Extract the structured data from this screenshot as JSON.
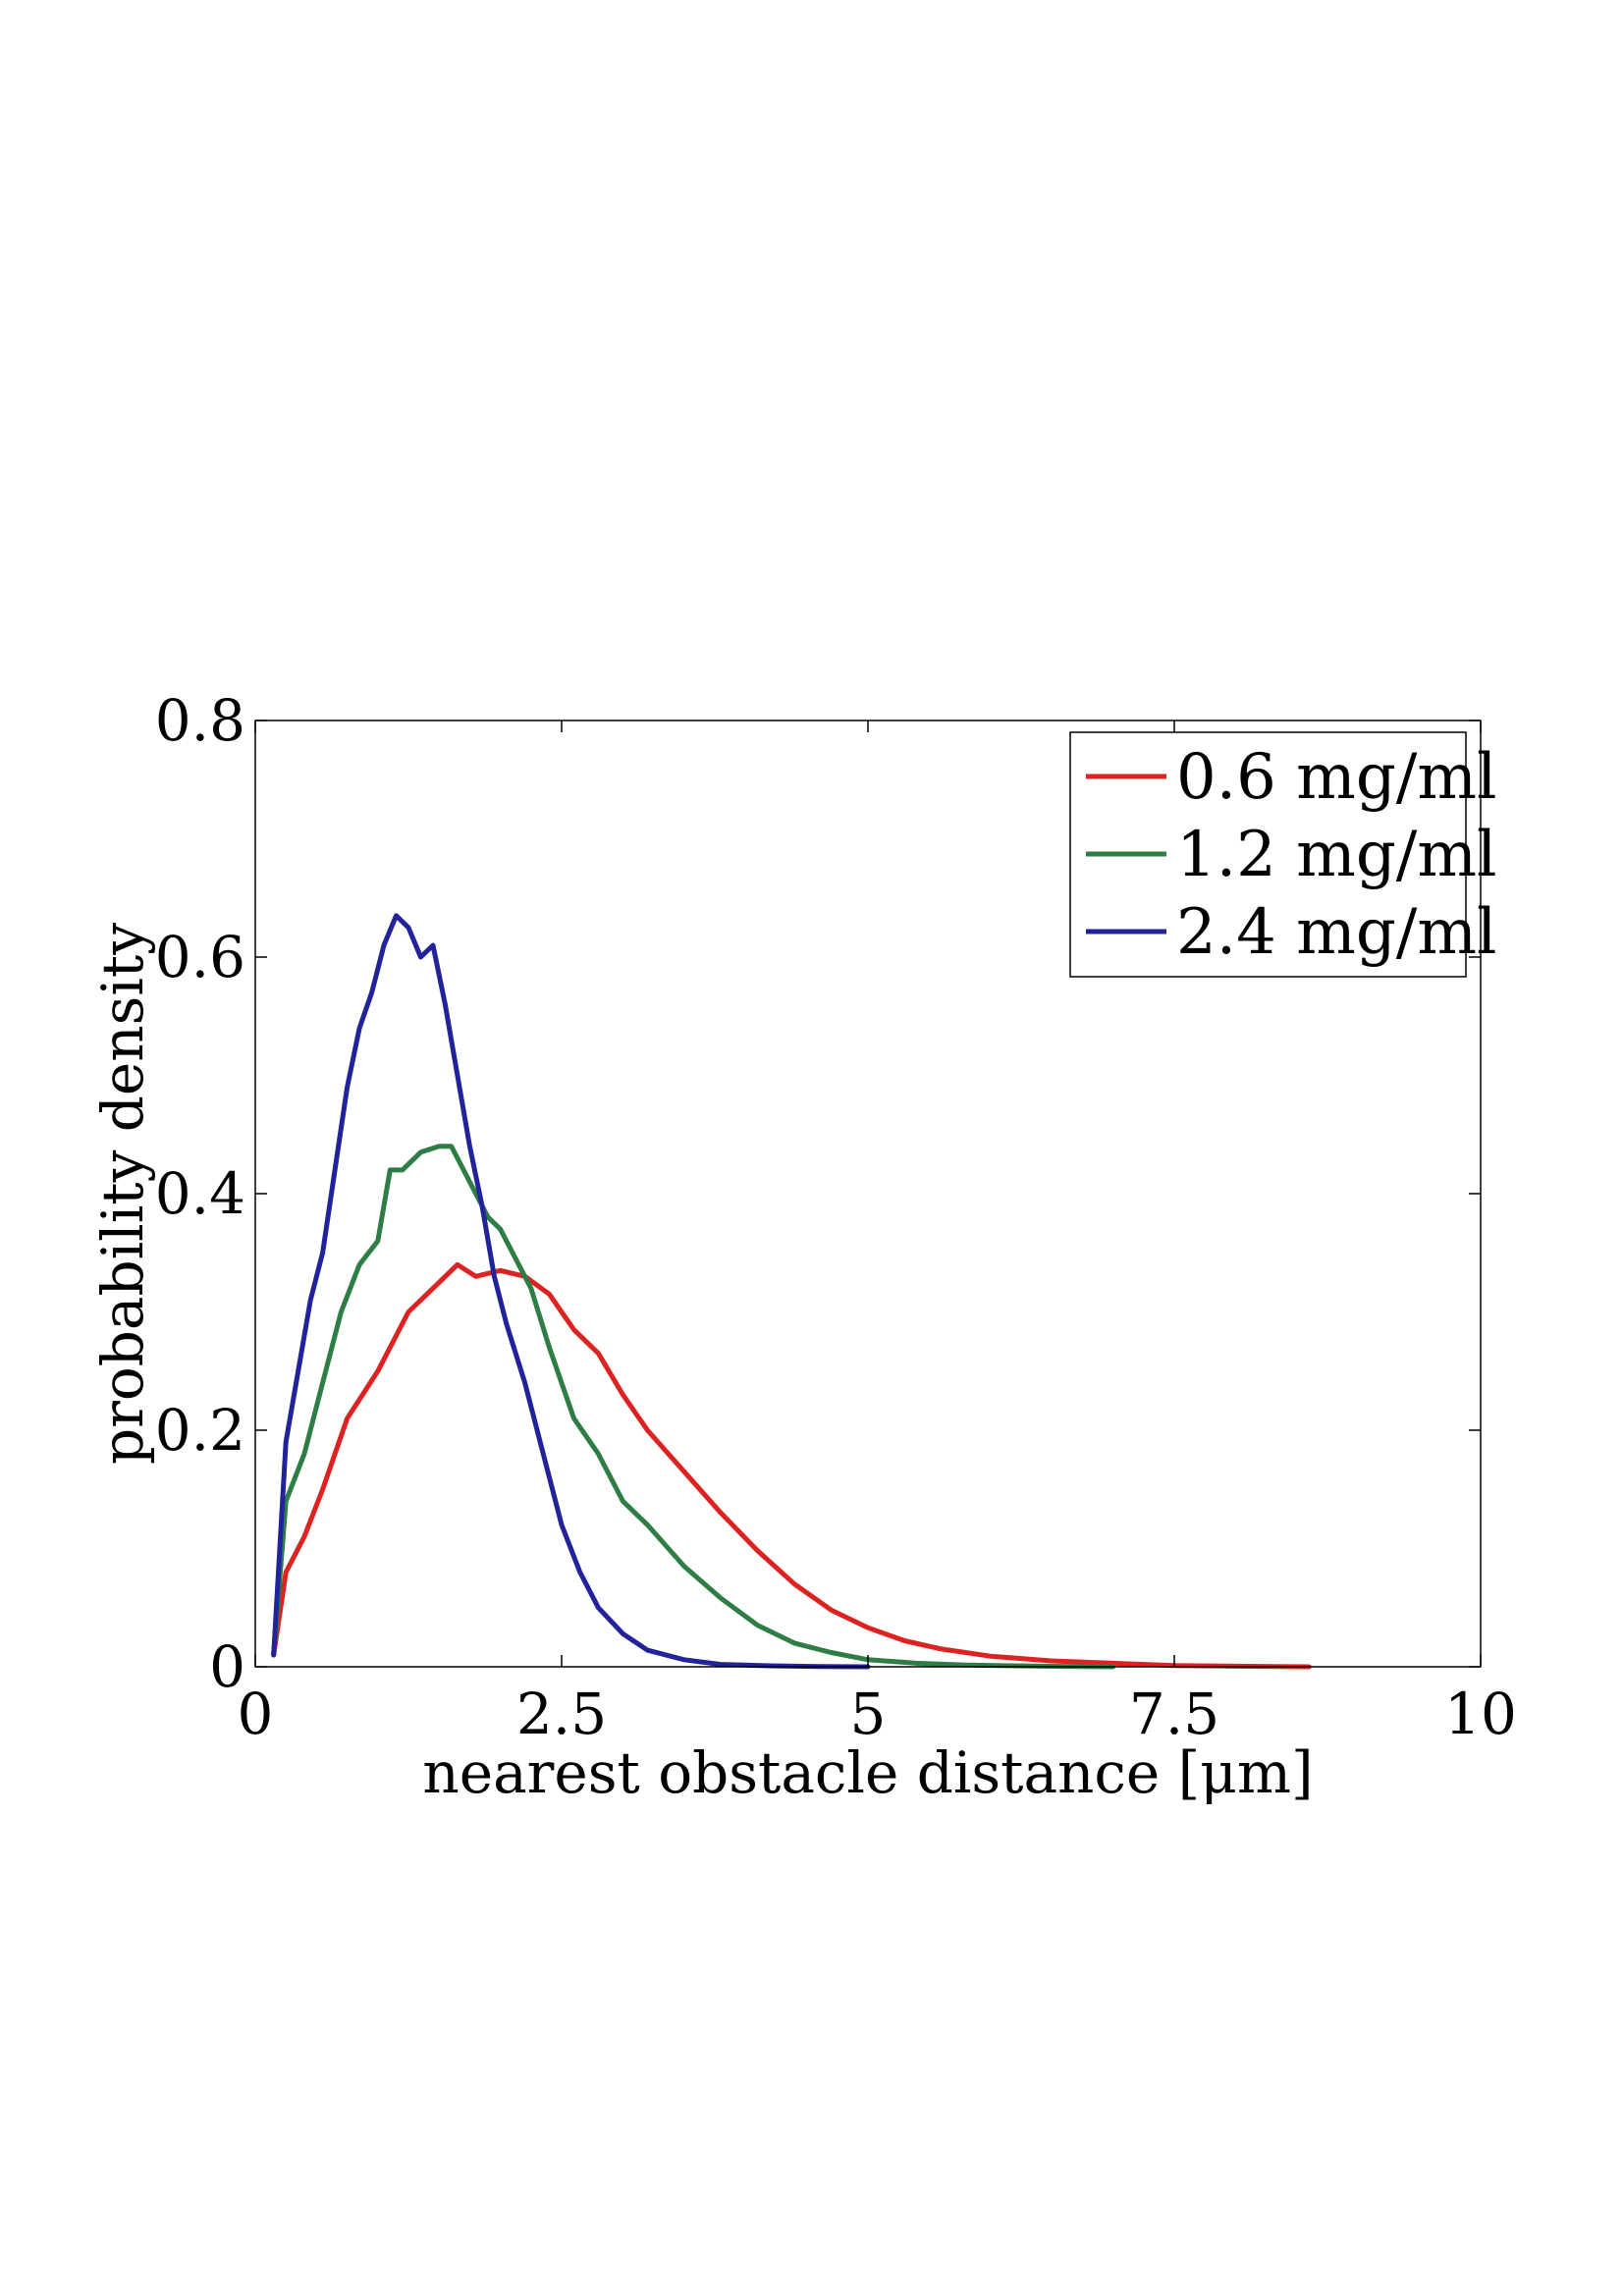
{
  "chart_data": {
    "type": "line",
    "title": "",
    "xlabel": "nearest obstacle distance [μm]",
    "ylabel": "probability density",
    "xlim": [
      0,
      10
    ],
    "ylim": [
      0,
      0.8
    ],
    "xticks": [
      0,
      2.5,
      5,
      7.5,
      10
    ],
    "xtick_labels": [
      "0",
      "2.5",
      "5",
      "7.5",
      "10"
    ],
    "yticks": [
      0,
      0.2,
      0.4,
      0.6,
      0.8
    ],
    "ytick_labels": [
      "0",
      "0.2",
      "0.4",
      "0.6",
      "0.8"
    ],
    "grid": false,
    "legend_position": "top-right",
    "series": [
      {
        "name": "0.6 mg/ml",
        "color": "#dd2222",
        "x": [
          0.15,
          0.25,
          0.4,
          0.55,
          0.75,
          1.0,
          1.25,
          1.5,
          1.65,
          1.8,
          2.0,
          2.2,
          2.4,
          2.6,
          2.8,
          3.0,
          3.2,
          3.5,
          3.8,
          4.1,
          4.4,
          4.7,
          5.0,
          5.3,
          5.6,
          6.0,
          6.5,
          7.0,
          7.5,
          8.0,
          8.6
        ],
        "y": [
          0.01,
          0.08,
          0.11,
          0.15,
          0.21,
          0.25,
          0.3,
          0.325,
          0.34,
          0.33,
          0.335,
          0.33,
          0.315,
          0.285,
          0.265,
          0.23,
          0.2,
          0.165,
          0.13,
          0.098,
          0.07,
          0.048,
          0.033,
          0.022,
          0.015,
          0.009,
          0.005,
          0.003,
          0.001,
          0.0005,
          0.0
        ]
      },
      {
        "name": "1.2 mg/ml",
        "color": "#2e7d45",
        "x": [
          0.15,
          0.25,
          0.4,
          0.55,
          0.7,
          0.85,
          1.0,
          1.1,
          1.2,
          1.35,
          1.5,
          1.6,
          1.75,
          1.9,
          2.0,
          2.1,
          2.25,
          2.4,
          2.6,
          2.8,
          3.0,
          3.2,
          3.5,
          3.8,
          4.1,
          4.4,
          4.7,
          5.0,
          5.4,
          5.8,
          6.2,
          6.6,
          7.0
        ],
        "y": [
          0.01,
          0.14,
          0.18,
          0.24,
          0.3,
          0.34,
          0.36,
          0.42,
          0.42,
          0.435,
          0.44,
          0.44,
          0.41,
          0.38,
          0.37,
          0.35,
          0.32,
          0.27,
          0.21,
          0.18,
          0.14,
          0.12,
          0.085,
          0.058,
          0.035,
          0.02,
          0.012,
          0.006,
          0.003,
          0.0015,
          0.0008,
          0.0003,
          0.0
        ]
      },
      {
        "name": "2.4 mg/ml",
        "color": "#22229a",
        "x": [
          0.15,
          0.25,
          0.35,
          0.45,
          0.55,
          0.65,
          0.75,
          0.85,
          0.95,
          1.05,
          1.15,
          1.25,
          1.35,
          1.45,
          1.55,
          1.65,
          1.75,
          1.85,
          1.95,
          2.05,
          2.2,
          2.35,
          2.5,
          2.65,
          2.8,
          3.0,
          3.2,
          3.5,
          3.8,
          4.2,
          4.6,
          5.0
        ],
        "y": [
          0.01,
          0.19,
          0.25,
          0.31,
          0.35,
          0.42,
          0.49,
          0.54,
          0.57,
          0.61,
          0.635,
          0.625,
          0.6,
          0.61,
          0.56,
          0.5,
          0.44,
          0.39,
          0.33,
          0.29,
          0.24,
          0.18,
          0.12,
          0.08,
          0.05,
          0.028,
          0.014,
          0.006,
          0.002,
          0.0008,
          0.0002,
          0.0
        ]
      }
    ]
  }
}
